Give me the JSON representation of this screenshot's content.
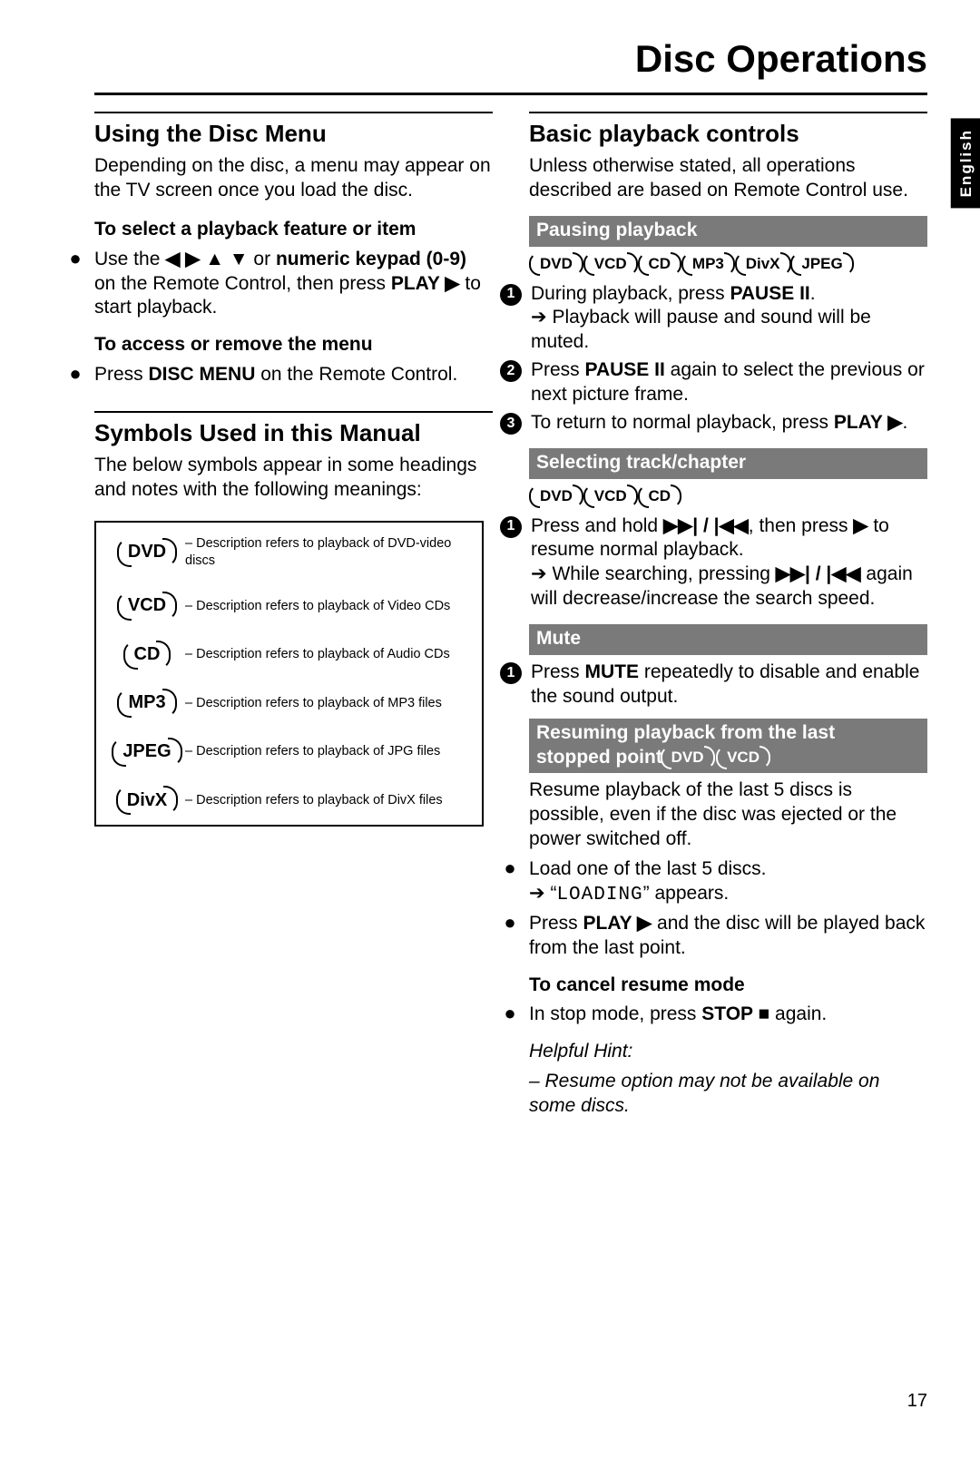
{
  "page": {
    "title": "Disc Operations",
    "language_tab": "English",
    "page_number": "17"
  },
  "left": {
    "sec1_title": "Using the Disc Menu",
    "sec1_intro": "Depending on the disc, a menu may appear on the TV screen once you load the disc.",
    "sec1_sub1": "To select a playback feature or item",
    "sec1_b1_pre": "Use the ",
    "sec1_b1_arrows": "◀ ▶ ▲ ▼",
    "sec1_b1_mid": " or ",
    "sec1_b1_kpd": "numeric keypad (0-9)",
    "sec1_b1_post": " on the Remote Control, then press ",
    "sec1_b1_play": "PLAY ▶",
    "sec1_b1_end": " to start playback.",
    "sec1_sub2": "To access or remove the menu",
    "sec1_b2_pre": "Press ",
    "sec1_b2_bold": "DISC MENU",
    "sec1_b2_post": " on the Remote Control.",
    "sec2_title": "Symbols Used in this Manual",
    "sec2_intro": "The below symbols appear in some headings and notes with the following meanings:",
    "symbols": [
      {
        "label": "DVD",
        "desc": "– Description refers to playback of DVD-video discs"
      },
      {
        "label": "VCD",
        "desc": "– Description refers to playback of Video CDs"
      },
      {
        "label": "CD",
        "desc": "– Description refers to playback of Audio CDs"
      },
      {
        "label": "MP3",
        "desc": "– Description refers to playback of MP3 files"
      },
      {
        "label": "JPEG",
        "desc": "– Description refers to playback of JPG files"
      },
      {
        "label": "DivX",
        "desc": "– Description refers to playback of DivX files"
      }
    ]
  },
  "right": {
    "sec1_title": "Basic playback controls",
    "sec1_intro": "Unless otherwise stated, all operations described are based on Remote Control use.",
    "bar1": "Pausing playback",
    "bar1_badges": [
      "DVD",
      "VCD",
      "CD",
      "MP3",
      "DivX",
      "JPEG"
    ],
    "p1_1_pre": "During playback, press ",
    "p1_1_bold": "PAUSE II",
    "p1_1_post": ".",
    "p1_1_arrow": "Playback will pause and sound will be muted.",
    "p1_2_pre": "Press ",
    "p1_2_bold": "PAUSE II",
    "p1_2_post": " again to select the previous or next picture frame.",
    "p1_3_pre": "To return to normal playback, press ",
    "p1_3_bold": "PLAY ▶",
    "p1_3_post": ".",
    "bar2": "Selecting track/chapter",
    "bar2_badges": [
      "DVD",
      "VCD",
      "CD"
    ],
    "p2_1_pre": "Press and hold ",
    "p2_1_sym1": "▶▶| / |◀◀",
    "p2_1_mid": ", then press ",
    "p2_1_sym2": "▶",
    "p2_1_post": " to resume normal playback.",
    "p2_1_arrow_pre": "While searching, pressing ",
    "p2_1_arrow_sym": "▶▶| / |◀◀",
    "p2_1_arrow_post": " again will decrease/increase the search speed.",
    "bar3": "Mute",
    "p3_1_pre": "Press ",
    "p3_1_bold": "MUTE",
    "p3_1_post": " repeatedly to disable and enable the sound output.",
    "bar4_line1": "Resuming playback from the last",
    "bar4_line2_pre": "stopped point ",
    "bar4_badges": [
      "DVD",
      "VCD"
    ],
    "p4_intro": "Resume playback of the last 5 discs is possible, even if the disc was ejected or the power switched off.",
    "p4_b1": "Load one of the last 5 discs.",
    "p4_b1_arrow_pre": "“",
    "p4_b1_arrow_mono": "LOADING",
    "p4_b1_arrow_post": "” appears.",
    "p4_b2_pre": "Press ",
    "p4_b2_bold": "PLAY ▶",
    "p4_b2_post": " and the disc will be played back from the last point.",
    "p4_sub": "To cancel resume mode",
    "p4_b3_pre": "In stop mode, press ",
    "p4_b3_bold": "STOP ■",
    "p4_b3_post": " again.",
    "hint_head": "Helpful Hint:",
    "hint_body": "–   Resume option may not be available on some discs."
  }
}
